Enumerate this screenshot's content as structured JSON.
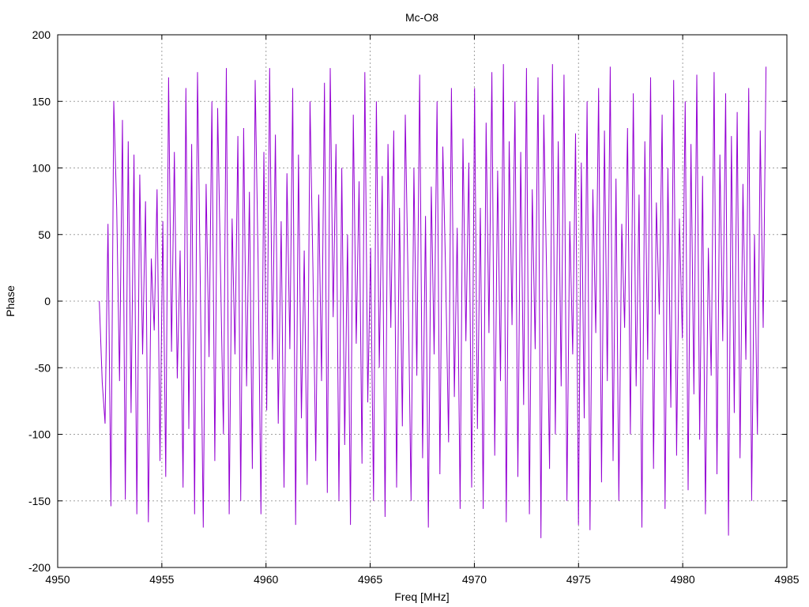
{
  "chart_data": {
    "type": "line",
    "title": "Mc-O8",
    "xlabel": "Freq [MHz]",
    "ylabel": "Phase",
    "xlim": [
      4950,
      4985
    ],
    "ylim": [
      -200,
      200
    ],
    "xticks": [
      4950,
      4955,
      4960,
      4965,
      4970,
      4975,
      4980,
      4985
    ],
    "yticks": [
      -200,
      -150,
      -100,
      -50,
      0,
      50,
      100,
      150,
      200
    ],
    "grid": true,
    "legend": "none",
    "series": [
      {
        "color": "#9400d3",
        "x_start": 4952.0,
        "x_end": 4984.0,
        "y_range": [
          -180,
          180
        ],
        "values": [
          0,
          -61,
          -92,
          58,
          -154,
          150,
          70,
          -60,
          136,
          -149,
          120,
          -84,
          110,
          -160,
          95,
          -40,
          75,
          -166,
          32,
          -22,
          84,
          -120,
          60,
          -132,
          168,
          -38,
          112,
          -58,
          38,
          -140,
          160,
          -96,
          118,
          -160,
          172,
          10,
          -170,
          88,
          -42,
          150,
          -120,
          145,
          20,
          -100,
          175,
          -160,
          62,
          -40,
          124,
          -150,
          130,
          -64,
          82,
          -126,
          166,
          30,
          -160,
          112,
          -82,
          175,
          -44,
          125,
          -92,
          60,
          -140,
          96,
          -36,
          160,
          -168,
          110,
          -88,
          38,
          -138,
          150,
          24,
          -120,
          80,
          -60,
          164,
          -144,
          175,
          -12,
          118,
          -150,
          100,
          -108,
          50,
          -168,
          140,
          -32,
          90,
          -122,
          172,
          -76,
          40,
          -150,
          150,
          -50,
          94,
          -162,
          118,
          -20,
          128,
          -140,
          70,
          -94,
          140,
          12,
          -150,
          100,
          -56,
          170,
          -118,
          64,
          -170,
          86,
          -40,
          150,
          -130,
          116,
          20,
          -106,
          160,
          -72,
          55,
          -156,
          122,
          -30,
          104,
          -140,
          160,
          -96,
          70,
          -156,
          134,
          -24,
          172,
          -116,
          98,
          -60,
          178,
          -166,
          120,
          -18,
          150,
          -132,
          112,
          -78,
          175,
          -160,
          84,
          -36,
          168,
          -178,
          140,
          16,
          -126,
          178,
          -100,
          120,
          -64,
          170,
          -150,
          60,
          -40,
          126,
          -168,
          104,
          -88,
          150,
          -172,
          84,
          -24,
          160,
          -136,
          128,
          -60,
          176,
          -120,
          92,
          -150,
          58,
          -20,
          130,
          -100,
          156,
          -64,
          80,
          -170,
          120,
          -44,
          168,
          -126,
          74,
          -10,
          140,
          -156,
          100,
          -80,
          166,
          -116,
          62,
          -28,
          150,
          -142,
          118,
          -70,
          170,
          -104,
          94,
          -160,
          40,
          -56,
          172,
          -130,
          110,
          -30,
          156,
          -176,
          124,
          -84,
          142,
          -118,
          88,
          -44,
          160,
          -150,
          50,
          -100,
          128,
          -20,
          176
        ]
      }
    ]
  }
}
